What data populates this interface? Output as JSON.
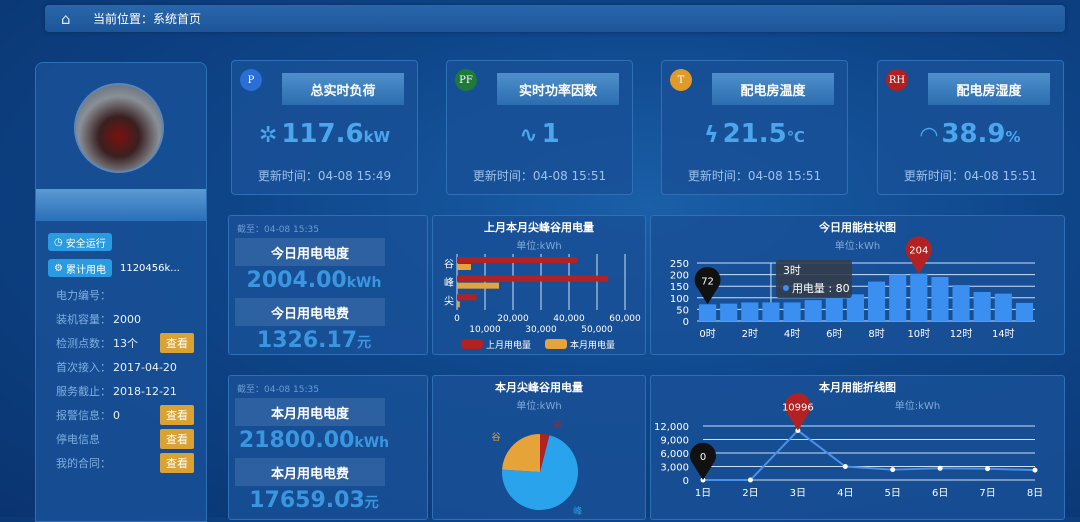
{
  "breadcrumb": {
    "icon": "home-icon",
    "text": "当前位置：系统首页"
  },
  "left": {
    "tags": [
      {
        "label": "安全运行",
        "icon": "clock-icon"
      },
      {
        "label": "累计用电",
        "icon": "gear-icon",
        "value": "1120456k..."
      }
    ],
    "info": [
      {
        "label": "电力编号：",
        "value": ""
      },
      {
        "label": "装机容量：",
        "value": "2000"
      },
      {
        "label": "检测点数：",
        "value": "13个",
        "button": "查看"
      },
      {
        "label": "首次接入：",
        "value": "2017-04-20"
      },
      {
        "label": "服务截止：",
        "value": "2018-12-21"
      },
      {
        "label": "报警信息：",
        "value": "0",
        "button": "查看"
      },
      {
        "label": "停电信息",
        "value": "",
        "button": "查看"
      },
      {
        "label": "我的合同：",
        "value": "",
        "button": "查看"
      }
    ]
  },
  "cards": [
    {
      "badge": "P",
      "badge_color": "#2a6fd6",
      "title": "总实时负荷",
      "icon": "snowflake-icon",
      "icon_glyph": "✲",
      "value": "117.6",
      "unit": "kW",
      "updated": "更新时间：04-08 15:49"
    },
    {
      "badge": "PF",
      "badge_color": "#1f7a3a",
      "title": "实时功率因数",
      "icon": "pulse-icon",
      "icon_glyph": "∿",
      "value": "1",
      "unit": "",
      "updated": "更新时间：04-08 15:51"
    },
    {
      "badge": "T",
      "badge_color": "#e09a2a",
      "title": "配电房温度",
      "icon": "lightning-icon",
      "icon_glyph": "ϟ",
      "value": "21.5",
      "unit": "℃",
      "updated": "更新时间：04-08 15:51"
    },
    {
      "badge": "RH",
      "badge_color": "#b0201e",
      "title": "配电房湿度",
      "icon": "gauge-icon",
      "icon_glyph": "◠",
      "value": "38.9",
      "unit": "%",
      "updated": "更新时间：04-08 15:51"
    }
  ],
  "today": {
    "asof": "截至：04-08 15:35",
    "energy_label": "今日用电电度",
    "energy": "2004.00",
    "energy_unit": "kWh",
    "cost_label": "今日用电电费",
    "cost": "1326.17",
    "cost_unit": "元"
  },
  "month": {
    "asof": "截至：04-08 15:35",
    "energy_label": "本月用电电度",
    "energy": "21800.00",
    "energy_unit": "kWh",
    "cost_label": "本月用电电费",
    "cost": "17659.03",
    "cost_unit": "元"
  },
  "chart_data": [
    {
      "type": "bar",
      "orientation": "horizontal",
      "title": "上月本月尖峰谷用电量",
      "subtitle": "单位:kWh",
      "categories": [
        "谷",
        "峰",
        "尖"
      ],
      "series": [
        {
          "name": "上月用电量",
          "color": "#b22222",
          "values": [
            43000,
            54000,
            7000
          ]
        },
        {
          "name": "本月用电量",
          "color": "#e6a33a",
          "values": [
            5000,
            15000,
            1000
          ]
        }
      ],
      "xlim": [
        0,
        60000
      ],
      "xticks": [
        "0",
        "10,000",
        "20,000",
        "30,000",
        "40,000",
        "50,000",
        "60,000"
      ],
      "legend": "bottom"
    },
    {
      "type": "bar",
      "title": "今日用能柱状图",
      "subtitle": "单位:kWh",
      "categories": [
        "0时",
        "1时",
        "2时",
        "3时",
        "4时",
        "5时",
        "6时",
        "7时",
        "8时",
        "9时",
        "10时",
        "11时",
        "12时",
        "13时",
        "14时",
        "15时"
      ],
      "xtick_labels": [
        "0时",
        "2时",
        "4时",
        "6时",
        "8时",
        "10时",
        "12时",
        "14时"
      ],
      "values": [
        72,
        75,
        80,
        80,
        80,
        90,
        100,
        115,
        170,
        200,
        204,
        190,
        155,
        125,
        118,
        78
      ],
      "color": "#3a8ff0",
      "ylim": [
        0,
        250
      ],
      "yticks": [
        0,
        50,
        100,
        150,
        200,
        250
      ],
      "markers": [
        {
          "label": "72",
          "type": "min",
          "color": "#111111"
        },
        {
          "label": "204",
          "type": "max",
          "color": "#b22222"
        }
      ],
      "tooltip": {
        "title": "3时",
        "series": "用电量",
        "value": "80"
      }
    },
    {
      "type": "pie",
      "title": "本月尖峰谷用电量",
      "subtitle": "单位:kWh",
      "slices": [
        {
          "label": "峰",
          "value": 72,
          "color": "#29a3ec"
        },
        {
          "label": "谷",
          "value": 24,
          "color": "#e6a33a"
        },
        {
          "label": "尖",
          "value": 4,
          "color": "#b22222"
        }
      ]
    },
    {
      "type": "line",
      "title": "本月用能折线图",
      "subtitle": "单位:kWh",
      "categories": [
        "1日",
        "2日",
        "3日",
        "4日",
        "5日",
        "6日",
        "7日",
        "8日"
      ],
      "values": [
        0,
        0,
        10996,
        3000,
        2300,
        2600,
        2500,
        2200
      ],
      "color": "#4a8fe8",
      "ylim": [
        0,
        12000
      ],
      "yticks": [
        "0",
        "3,000",
        "6,000",
        "9,000",
        "12,000"
      ],
      "markers": [
        {
          "label": "0",
          "type": "min",
          "color": "#111111"
        },
        {
          "label": "10996",
          "type": "max",
          "color": "#b22222"
        }
      ]
    }
  ]
}
